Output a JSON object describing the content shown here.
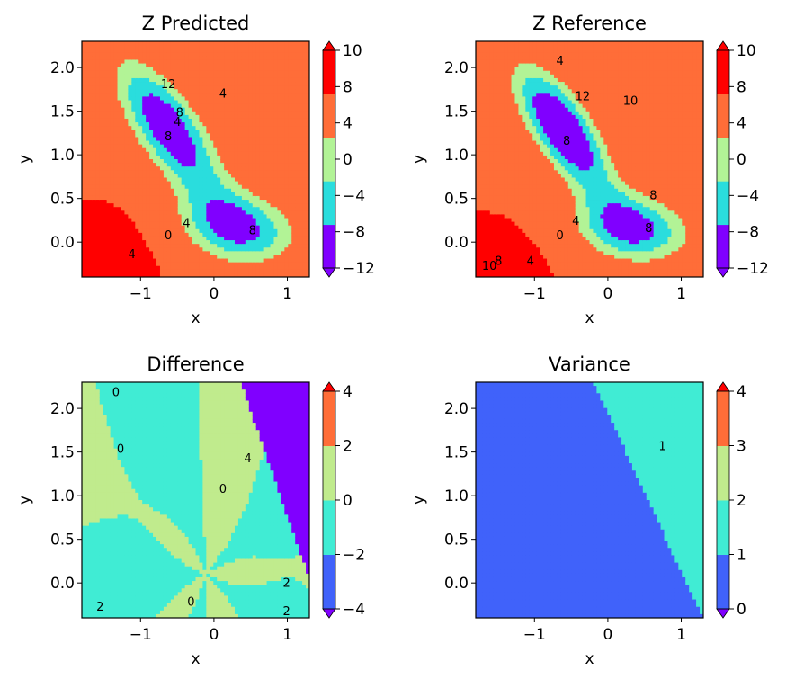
{
  "chart_data": [
    {
      "type": "contour",
      "title": "Z Predicted",
      "xlabel": "x",
      "ylabel": "y",
      "xlim": [
        -1.8,
        1.3
      ],
      "ylim": [
        -0.4,
        2.3
      ],
      "xticks": [
        "−1",
        "0",
        "1"
      ],
      "yticks": [
        "0.0",
        "0.5",
        "1.0",
        "1.5",
        "2.0"
      ],
      "colorbar": {
        "ticks": [
          "−12",
          "−8",
          "−4",
          "0",
          "4",
          "8",
          "10"
        ],
        "levels": [
          -12,
          -8,
          -4,
          0,
          10
        ],
        "colors": [
          "#8000ff",
          "#2adddd",
          "#b2f396",
          "#ff6d38",
          "#ff0000"
        ],
        "extend": "both"
      },
      "contour_labels": [
        "4",
        "4",
        "4",
        "0",
        "4",
        "8",
        "12",
        "8",
        "8"
      ]
    },
    {
      "type": "contour",
      "title": "Z Reference",
      "xlabel": "x",
      "ylabel": "y",
      "xlim": [
        -1.8,
        1.3
      ],
      "ylim": [
        -0.4,
        2.3
      ],
      "xticks": [
        "−1",
        "0",
        "1"
      ],
      "yticks": [
        "0.0",
        "0.5",
        "1.0",
        "1.5",
        "2.0"
      ],
      "colorbar": {
        "ticks": [
          "−12",
          "−8",
          "−4",
          "0",
          "4",
          "8",
          "10"
        ],
        "levels": [
          -12,
          -8,
          -4,
          0,
          10
        ],
        "colors": [
          "#8000ff",
          "#2adddd",
          "#b2f396",
          "#ff6d38",
          "#ff0000"
        ],
        "extend": "both"
      },
      "contour_labels": [
        "4",
        "10",
        "12",
        "8",
        "8",
        "4",
        "0",
        "8",
        "4",
        "8",
        "10"
      ]
    },
    {
      "type": "contour",
      "title": "Difference",
      "xlabel": "x",
      "ylabel": "y",
      "xlim": [
        -1.8,
        1.3
      ],
      "ylim": [
        -0.4,
        2.3
      ],
      "xticks": [
        "−1",
        "0",
        "1"
      ],
      "yticks": [
        "0.0",
        "0.5",
        "1.0",
        "1.5",
        "2.0"
      ],
      "colorbar": {
        "ticks": [
          "−4",
          "−2",
          "0",
          "2",
          "4"
        ],
        "levels": [
          -4,
          -2,
          0,
          2,
          4
        ],
        "colors": [
          "#4062fa",
          "#40ecd4",
          "#c0eb8d",
          "#ff6d38"
        ],
        "extend": "both",
        "under_color": "#8000ff",
        "over_color": "#ff0000"
      },
      "contour_labels": [
        "0",
        "0",
        "0",
        "4",
        "0",
        "2",
        "2",
        "2"
      ]
    },
    {
      "type": "contour",
      "title": "Variance",
      "xlabel": "x",
      "ylabel": "y",
      "xlim": [
        -1.8,
        1.3
      ],
      "ylim": [
        -0.4,
        2.3
      ],
      "xticks": [
        "−1",
        "0",
        "1"
      ],
      "yticks": [
        "0.0",
        "0.5",
        "1.0",
        "1.5",
        "2.0"
      ],
      "colorbar": {
        "ticks": [
          "0",
          "1",
          "2",
          "3",
          "4"
        ],
        "levels": [
          0,
          1,
          2,
          3,
          4
        ],
        "colors": [
          "#4062fa",
          "#40ecd4",
          "#c0eb8d",
          "#ff6d38"
        ],
        "extend": "both",
        "under_color": "#8000ff",
        "over_color": "#ff0000"
      },
      "contour_labels": [
        "1"
      ]
    }
  ]
}
